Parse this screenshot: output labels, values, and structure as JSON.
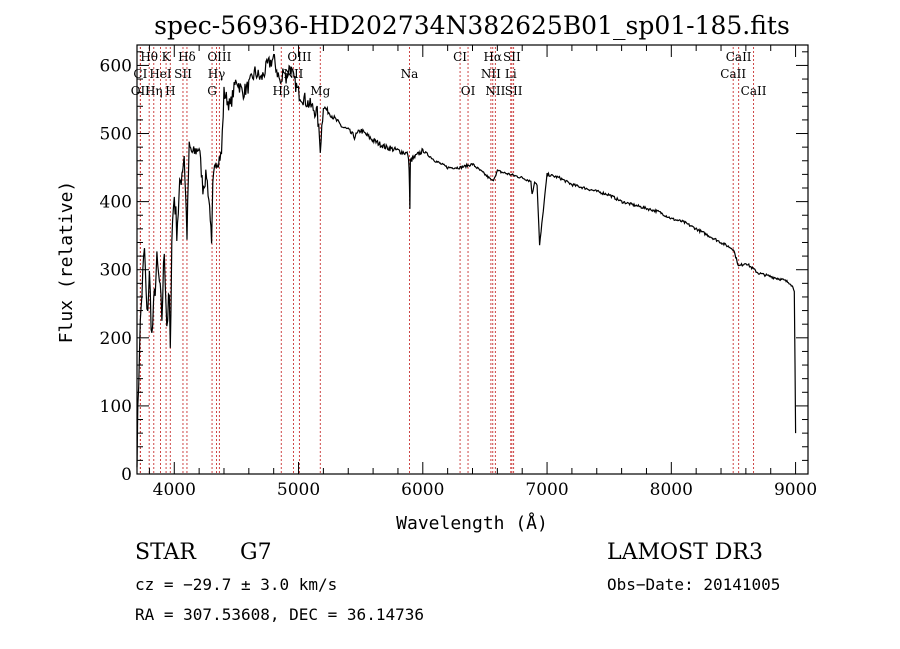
{
  "chart_data": {
    "type": "line",
    "title": "spec-56936-HD202734N382625B01_sp01-185.fits",
    "xlabel": "Wavelength (Å)",
    "ylabel": "Flux (relative)",
    "xlim": [
      3700,
      9100
    ],
    "ylim": [
      0,
      630
    ],
    "x_ticks": [
      4000,
      5000,
      6000,
      7000,
      8000,
      9000
    ],
    "y_ticks": [
      0,
      100,
      200,
      300,
      400,
      500,
      600
    ],
    "x_tick_labels": [
      "4000",
      "5000",
      "6000",
      "7000",
      "8000",
      "9000"
    ],
    "y_tick_labels": [
      "0",
      "100",
      "200",
      "300",
      "400",
      "500",
      "600"
    ],
    "series": [
      {
        "name": "flux",
        "x": [
          3700,
          3720,
          3740,
          3760,
          3780,
          3800,
          3820,
          3840,
          3860,
          3880,
          3900,
          3920,
          3940,
          3960,
          3968,
          3980,
          4000,
          4020,
          4050,
          4080,
          4102,
          4120,
          4150,
          4200,
          4230,
          4260,
          4290,
          4300,
          4310,
          4330,
          4350,
          4380,
          4400,
          4450,
          4500,
          4550,
          4600,
          4650,
          4700,
          4750,
          4800,
          4830,
          4861,
          4880,
          4900,
          4930,
          4960,
          5000,
          5050,
          5100,
          5150,
          5175,
          5200,
          5250,
          5300,
          5350,
          5400,
          5450,
          5500,
          5600,
          5700,
          5800,
          5880,
          5890,
          5896,
          5900,
          6000,
          6100,
          6200,
          6300,
          6400,
          6500,
          6562,
          6600,
          6700,
          6800,
          6870,
          6880,
          6900,
          6920,
          6940,
          7000,
          7100,
          7200,
          7300,
          7400,
          7500,
          7600,
          7700,
          7800,
          7900,
          8000,
          8100,
          8200,
          8300,
          8400,
          8500,
          8542,
          8600,
          8700,
          8800,
          8900,
          8960,
          8990,
          9000
        ],
        "y": [
          30,
          190,
          270,
          330,
          230,
          290,
          200,
          260,
          310,
          280,
          230,
          330,
          220,
          260,
          170,
          350,
          410,
          360,
          430,
          470,
          350,
          480,
          470,
          480,
          420,
          440,
          380,
          330,
          420,
          460,
          460,
          470,
          560,
          540,
          580,
          560,
          570,
          590,
          580,
          600,
          610,
          590,
          570,
          600,
          580,
          600,
          580,
          560,
          550,
          540,
          530,
          480,
          540,
          530,
          520,
          510,
          505,
          495,
          505,
          490,
          480,
          475,
          470,
          450,
          390,
          460,
          475,
          460,
          450,
          450,
          455,
          440,
          430,
          445,
          440,
          435,
          430,
          410,
          430,
          425,
          335,
          440,
          435,
          425,
          420,
          415,
          410,
          400,
          395,
          390,
          385,
          375,
          370,
          360,
          350,
          340,
          330,
          305,
          310,
          295,
          290,
          285,
          280,
          270,
          60
        ]
      }
    ],
    "line_markers": [
      {
        "label": "Hθ",
        "x": 3798,
        "row": 1
      },
      {
        "label": "K",
        "x": 3934,
        "row": 1
      },
      {
        "label": "Hδ",
        "x": 4102,
        "row": 1
      },
      {
        "label": "OIII",
        "x": 4363,
        "row": 1
      },
      {
        "label": "OIII",
        "x": 5007,
        "row": 1
      },
      {
        "label": "CI",
        "x": 6300,
        "row": 1
      },
      {
        "label": "Hα",
        "x": 6563,
        "row": 1
      },
      {
        "label": "SII",
        "x": 6717,
        "row": 1
      },
      {
        "label": "CaII",
        "x": 8542,
        "row": 1
      },
      {
        "label": "CI",
        "x": 3727,
        "row": 2
      },
      {
        "label": "HeI",
        "x": 3889,
        "row": 2
      },
      {
        "label": "SII",
        "x": 4070,
        "row": 2
      },
      {
        "label": "Hγ",
        "x": 4340,
        "row": 2
      },
      {
        "label": "NII",
        "x": 4959,
        "row": 2
      },
      {
        "label": "Na",
        "x": 5893,
        "row": 2
      },
      {
        "label": "NII",
        "x": 6548,
        "row": 2
      },
      {
        "label": "Li",
        "x": 6708,
        "row": 2
      },
      {
        "label": "CaII",
        "x": 8498,
        "row": 2
      },
      {
        "label": "OII",
        "x": 3727,
        "row": 3
      },
      {
        "label": "Hη",
        "x": 3835,
        "row": 3
      },
      {
        "label": "H",
        "x": 3968,
        "row": 3
      },
      {
        "label": "G",
        "x": 4304,
        "row": 3
      },
      {
        "label": "Hβ",
        "x": 4861,
        "row": 3
      },
      {
        "label": "Mg",
        "x": 5175,
        "row": 3
      },
      {
        "label": "OI",
        "x": 6364,
        "row": 3
      },
      {
        "label": "NII",
        "x": 6584,
        "row": 3
      },
      {
        "label": "SII",
        "x": 6731,
        "row": 3
      },
      {
        "label": "CaII",
        "x": 8662,
        "row": 3
      }
    ],
    "annotations": {
      "object_class": "STAR",
      "subclass": "G7",
      "survey": "LAMOST DR3",
      "cz": "cz = −29.7 ± 3.0 km/s",
      "obs_date": "Obs−Date: 20141005",
      "coords": "RA = 307.53608, DEC =  36.14736"
    }
  },
  "colors": {
    "axis": "#000000",
    "spectrum": "#000000",
    "marker": "#c83232",
    "background": "#ffffff"
  }
}
